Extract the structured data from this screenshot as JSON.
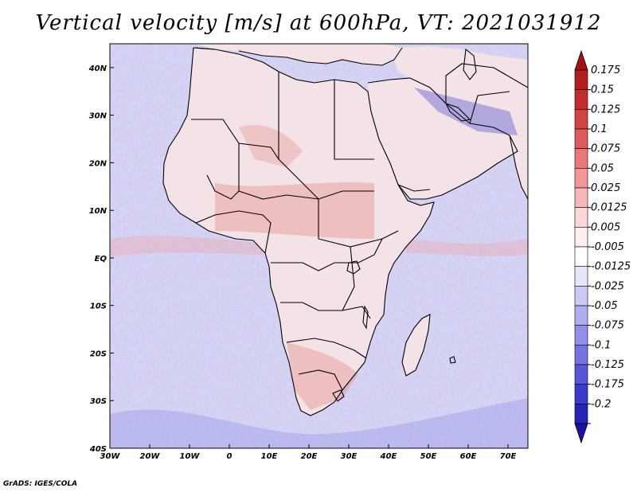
{
  "title": "Vertical velocity [m/s] at 600hPa, VT: 2021031912",
  "credit": "GrADS: IGES/COLA",
  "map": {
    "lon_range": [
      -30,
      75
    ],
    "lat_range": [
      -40,
      45
    ],
    "x_ticks": [
      {
        "value": -30,
        "label": "30W"
      },
      {
        "value": -20,
        "label": "20W"
      },
      {
        "value": -10,
        "label": "10W"
      },
      {
        "value": 0,
        "label": "0"
      },
      {
        "value": 10,
        "label": "10E"
      },
      {
        "value": 20,
        "label": "20E"
      },
      {
        "value": 30,
        "label": "30E"
      },
      {
        "value": 40,
        "label": "40E"
      },
      {
        "value": 50,
        "label": "50E"
      },
      {
        "value": 60,
        "label": "60E"
      },
      {
        "value": 70,
        "label": "70E"
      }
    ],
    "y_ticks": [
      {
        "value": 40,
        "label": "40N"
      },
      {
        "value": 30,
        "label": "30N"
      },
      {
        "value": 20,
        "label": "20N"
      },
      {
        "value": 10,
        "label": "10N"
      },
      {
        "value": 0,
        "label": "EQ"
      },
      {
        "value": -10,
        "label": "10S"
      },
      {
        "value": -20,
        "label": "20S"
      },
      {
        "value": -30,
        "label": "30S"
      },
      {
        "value": -40,
        "label": "40S"
      }
    ],
    "colors": {
      "ocean_base": "#d3d6f7",
      "land_base": "#f3e3e6",
      "coast": "#000000"
    }
  },
  "colorbar": {
    "levels": [
      {
        "label": "0.175",
        "color": "#b21d1d"
      },
      {
        "label": "0.15",
        "color": "#c22e2e"
      },
      {
        "label": "0.125",
        "color": "#d24343"
      },
      {
        "label": "0.1",
        "color": "#df5a5a"
      },
      {
        "label": "0.075",
        "color": "#ea7777"
      },
      {
        "label": "0.05",
        "color": "#f29797"
      },
      {
        "label": "0.025",
        "color": "#f8b8b8"
      },
      {
        "label": "0.0125",
        "color": "#fbd6d6"
      },
      {
        "label": "0.005",
        "color": "#fdeeee"
      },
      {
        "label": "-0.005",
        "color": "#ffffff"
      },
      {
        "label": "-0.0125",
        "color": "#e6e6fb"
      },
      {
        "label": "-0.025",
        "color": "#cacaf6"
      },
      {
        "label": "-0.05",
        "color": "#aeaef1"
      },
      {
        "label": "-0.075",
        "color": "#9090ea"
      },
      {
        "label": "-0.1",
        "color": "#7373e2"
      },
      {
        "label": "-0.125",
        "color": "#5656d8"
      },
      {
        "label": "-0.175",
        "color": "#3a3acb"
      },
      {
        "label": "-0.2",
        "color": "#2424bb"
      }
    ],
    "top_arrow_color": "#a51010",
    "bottom_arrow_color": "#1a12a8"
  }
}
